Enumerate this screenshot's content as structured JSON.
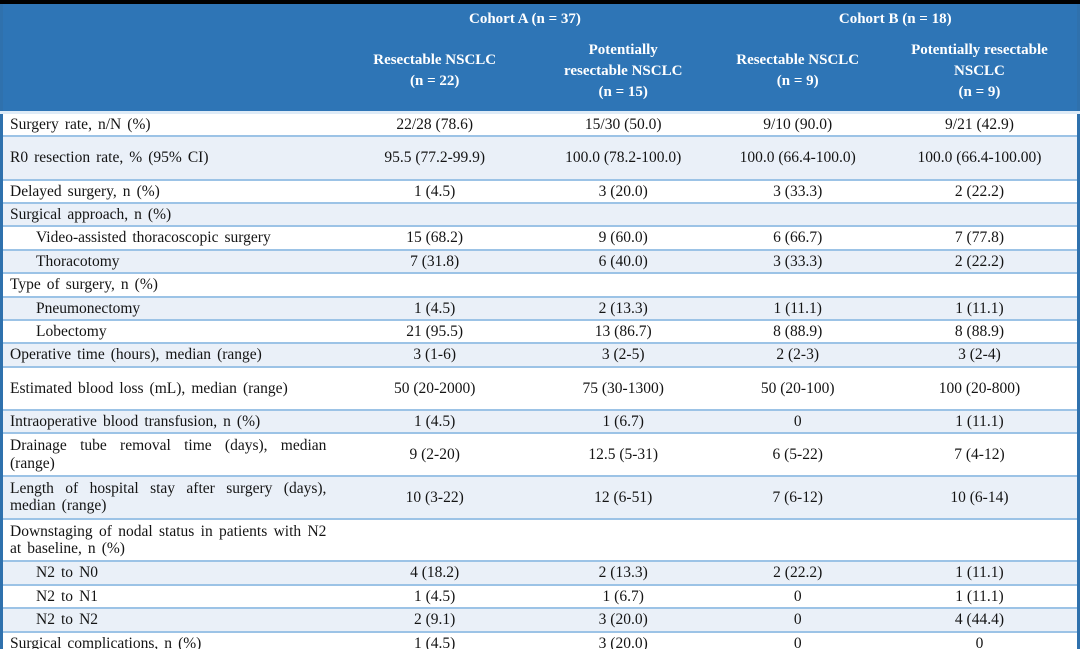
{
  "header": {
    "cohort_a_label": "Cohort A (n = 37)",
    "cohort_b_label": "Cohort B (n = 18)",
    "columns": [
      "Resectable NSCLC\n(n = 22)",
      "Potentially\nresectable NSCLC\n(n = 15)",
      "Resectable NSCLC\n(n = 9)",
      "Potentially resectable\nNSCLC\n(n = 9)"
    ]
  },
  "rows": [
    {
      "label": "Surgery rate, n/N (%)",
      "indent": false,
      "values": [
        "22/28 (78.6)",
        "15/30 (50.0)",
        "9/10 (90.0)",
        "9/21 (42.9)"
      ]
    },
    {
      "label": "R0 resection rate, % (95% CI)",
      "indent": false,
      "values": [
        "95.5 (77.2-99.9)",
        "100.0 (78.2-100.0)",
        "100.0 (66.4-100.0)",
        "100.0 (66.4-100.00)"
      ]
    },
    {
      "label": "Delayed surgery, n (%)",
      "indent": false,
      "values": [
        "1 (4.5)",
        "3 (20.0)",
        "3 (33.3)",
        "2 (22.2)"
      ]
    },
    {
      "label": "Surgical approach, n (%)",
      "indent": false,
      "values": [
        "",
        "",
        "",
        ""
      ]
    },
    {
      "label": "Video-assisted thoracoscopic surgery",
      "indent": true,
      "values": [
        "15 (68.2)",
        "9 (60.0)",
        "6 (66.7)",
        "7 (77.8)"
      ]
    },
    {
      "label": "Thoracotomy",
      "indent": true,
      "values": [
        "7 (31.8)",
        "6 (40.0)",
        "3 (33.3)",
        "2 (22.2)"
      ]
    },
    {
      "label": "Type of surgery, n (%)",
      "indent": false,
      "values": [
        "",
        "",
        "",
        ""
      ]
    },
    {
      "label": "Pneumonectomy",
      "indent": true,
      "values": [
        "1 (4.5)",
        "2 (13.3)",
        "1 (11.1)",
        "1 (11.1)"
      ]
    },
    {
      "label": "Lobectomy",
      "indent": true,
      "values": [
        "21 (95.5)",
        "13 (86.7)",
        "8 (88.9)",
        "8 (88.9)"
      ]
    },
    {
      "label": "Operative time (hours), median (range)",
      "indent": false,
      "values": [
        "3 (1-6)",
        "3 (2-5)",
        "2 (2-3)",
        "3 (2-4)"
      ]
    },
    {
      "label": "Estimated blood loss (mL), median (range)",
      "indent": false,
      "values": [
        "50 (20-2000)",
        "75 (30-1300)",
        "50 (20-100)",
        "100 (20-800)"
      ]
    },
    {
      "label": "Intraoperative blood transfusion, n (%)",
      "indent": false,
      "values": [
        "1 (4.5)",
        "1 (6.7)",
        "0",
        "1 (11.1)"
      ]
    },
    {
      "label": "Drainage tube removal time (days), median (range)",
      "indent": false,
      "values": [
        "9 (2-20)",
        "12.5 (5-31)",
        "6 (5-22)",
        "7 (4-12)"
      ]
    },
    {
      "label": "Length of hospital stay after surgery (days), median (range)",
      "indent": false,
      "values": [
        "10 (3-22)",
        "12 (6-51)",
        "7 (6-12)",
        "10 (6-14)"
      ]
    },
    {
      "label": "Downstaging of nodal status in patients with N2 at baseline, n (%)",
      "indent": false,
      "values": [
        "",
        "",
        "",
        ""
      ]
    },
    {
      "label": "N2 to N0",
      "indent": true,
      "values": [
        "4 (18.2)",
        "2 (13.3)",
        "2 (22.2)",
        "1 (11.1)"
      ]
    },
    {
      "label": "N2 to N1",
      "indent": true,
      "values": [
        "1 (4.5)",
        "1 (6.7)",
        "0",
        "1 (11.1)"
      ]
    },
    {
      "label": "N2 to N2",
      "indent": true,
      "values": [
        "2 (9.1)",
        "3 (20.0)",
        "0",
        "4 (44.4)"
      ]
    },
    {
      "label": "Surgical complications, n (%)",
      "indent": false,
      "values": [
        "1 (4.5)",
        "3 (20.0)",
        "0",
        "0"
      ]
    }
  ],
  "colors": {
    "header_bg": "#2E75B6",
    "header_text": "#FFFFFF",
    "stripe_bg": "#EAF0F8",
    "row_border": "#9CC3E6",
    "frame_border": "#2F71AD",
    "body_text": "#141414",
    "top_bottom_bar": "#000000"
  }
}
